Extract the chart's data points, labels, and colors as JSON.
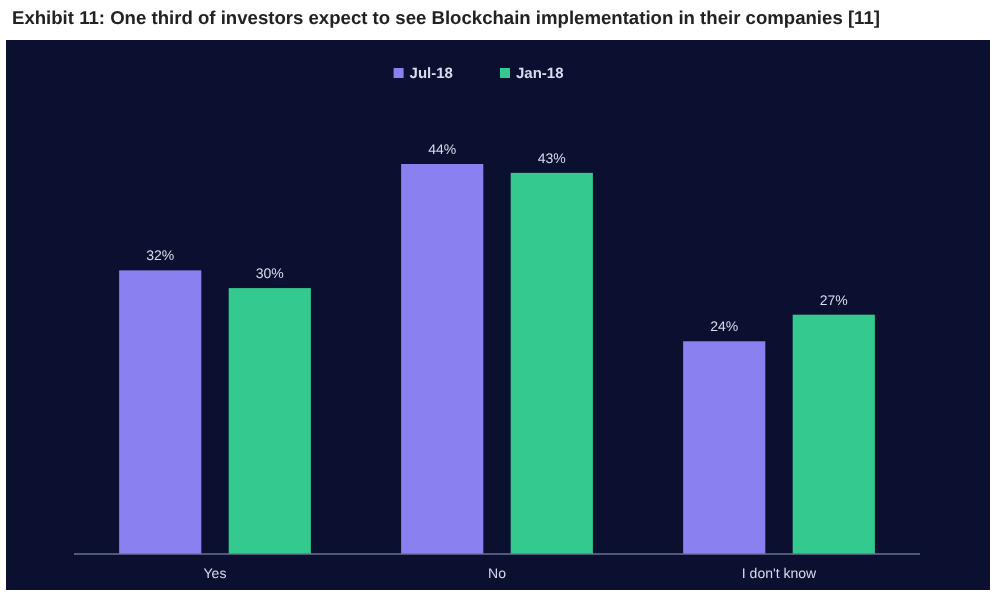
{
  "chart_data": {
    "type": "bar",
    "title": "Exhibit 11: One third of investors expect to see Blockchain implementation in their companies [11]",
    "categories": [
      "Yes",
      "No",
      "I don't know"
    ],
    "series": [
      {
        "name": "Jul-18",
        "color": "#8b80f0",
        "values": [
          32,
          44,
          24
        ],
        "value_labels": [
          "32%",
          "44%",
          "24%"
        ]
      },
      {
        "name": "Jan-18",
        "color": "#34c98e",
        "values": [
          30,
          43,
          27
        ],
        "value_labels": [
          "30%",
          "43%",
          "27%"
        ]
      }
    ],
    "legend": "top",
    "ylim": [
      0,
      44
    ]
  }
}
